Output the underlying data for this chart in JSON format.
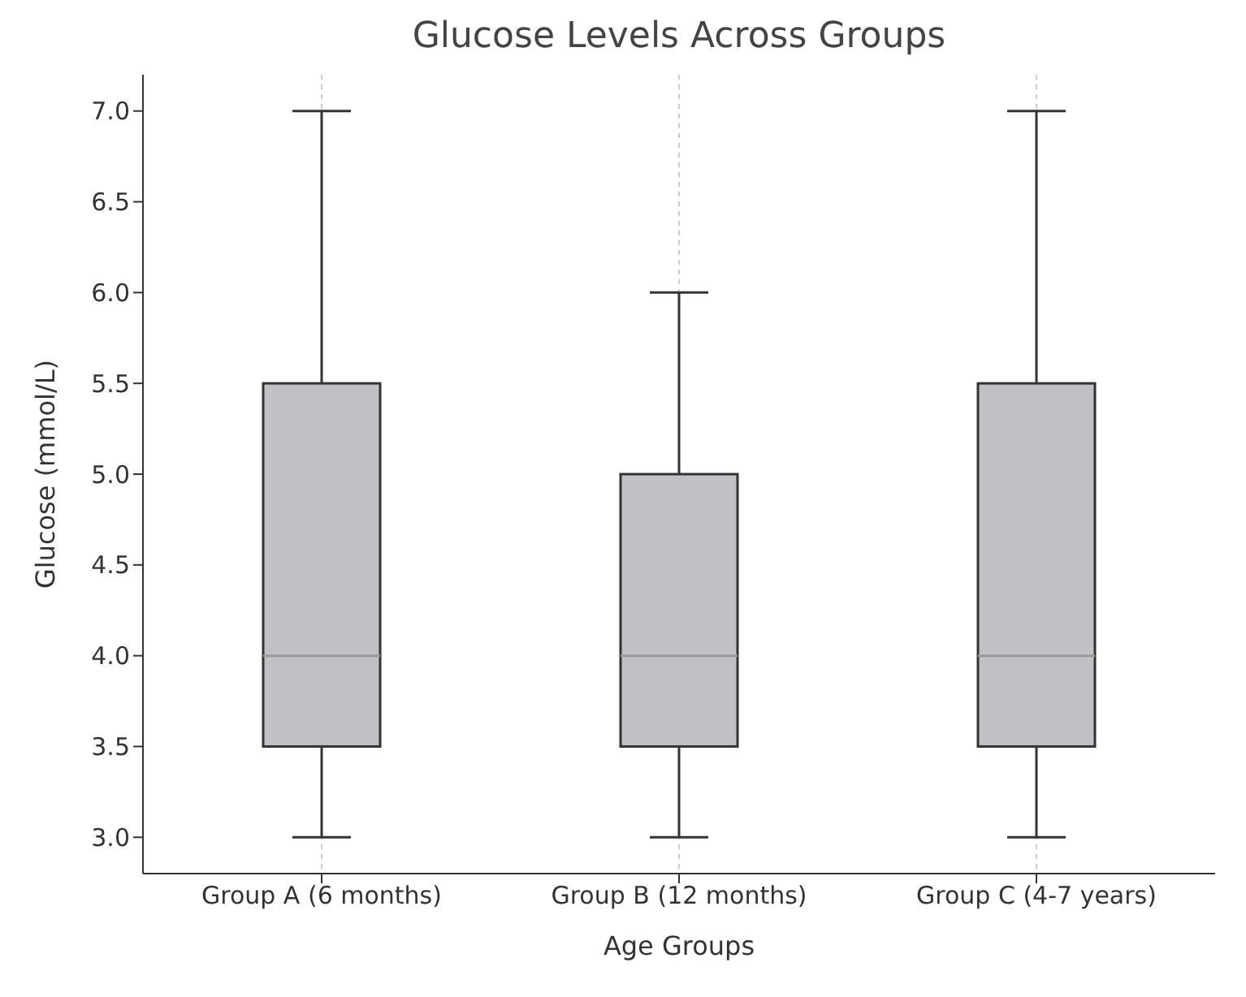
{
  "chart_data": {
    "type": "box",
    "title": "Glucose Levels Across Groups",
    "xlabel": "Age Groups",
    "ylabel": "Glucose (mmol/L)",
    "categories": [
      "Group A (6 months)",
      "Group B (12 months)",
      "Group C (4-7 years)"
    ],
    "boxes": [
      {
        "low": 3.0,
        "q1": 3.5,
        "median": 4.0,
        "q3": 5.5,
        "high": 7.0
      },
      {
        "low": 3.0,
        "q1": 3.5,
        "median": 4.0,
        "q3": 5.0,
        "high": 6.0
      },
      {
        "low": 3.0,
        "q1": 3.5,
        "median": 4.0,
        "q3": 5.5,
        "high": 7.0
      }
    ],
    "color": "#c0c1c4",
    "ylim": [
      2.8,
      7.2
    ],
    "yticks": [
      {
        "value": 3,
        "label": "3.0"
      },
      3.5,
      {
        "value": 4,
        "label": "4.0"
      },
      4.5,
      {
        "value": 5,
        "label": "5.0"
      },
      5.5,
      {
        "value": 6,
        "label": "6.0"
      },
      6.5,
      {
        "value": 7,
        "label": "7.0"
      }
    ],
    "grid": "x",
    "legend": false
  }
}
